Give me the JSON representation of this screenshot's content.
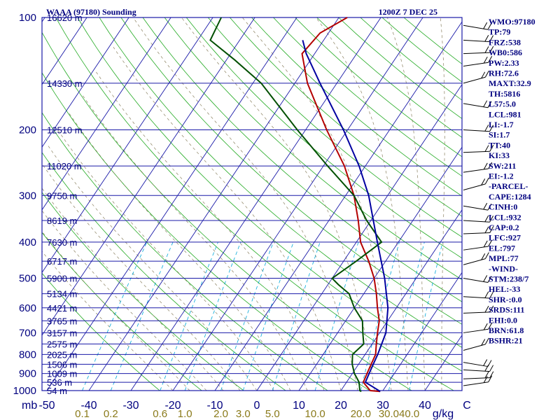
{
  "chart_data": {
    "type": "line",
    "title": "WAAA (97180) Sounding",
    "valid_time": "1200Z  7 DEC 25",
    "pressure_label": "mb",
    "pressure_ticks": [
      100,
      200,
      300,
      400,
      500,
      600,
      700,
      800,
      900,
      1000
    ],
    "xlabel_units": "C",
    "temperature_ticks": [
      "-50",
      "-40",
      "-30",
      "-20",
      "-10",
      "0",
      "10",
      "20",
      "30",
      "40",
      "C"
    ],
    "temperature_tick_values": [
      -50,
      -40,
      -30,
      -20,
      -10,
      0,
      10,
      20,
      30,
      40,
      50
    ],
    "mixing_ratio_label": "g/kg",
    "mixing_ratio_ticks": [
      "0.1",
      "0.2",
      "0.6",
      "1.0",
      "2.0",
      "3.0",
      "5.0",
      "10.0",
      "20.0",
      "30.0",
      "40.0"
    ],
    "mixing_ratio_values": [
      0.1,
      0.2,
      0.6,
      1.0,
      2.0,
      3.0,
      5.0,
      10.0,
      20.0,
      30.0,
      40.0
    ],
    "heights": [
      {
        "p": 100,
        "label": "16620 m"
      },
      {
        "p": 150,
        "label": "14330 m"
      },
      {
        "p": 200,
        "label": "12510 m"
      },
      {
        "p": 250,
        "label": "11020 m"
      },
      {
        "p": 300,
        "label": "9750 m"
      },
      {
        "p": 350,
        "label": "8619 m"
      },
      {
        "p": 400,
        "label": "7630 m"
      },
      {
        "p": 450,
        "label": "6717 m"
      },
      {
        "p": 500,
        "label": "5900 m"
      },
      {
        "p": 550,
        "label": "5134 m"
      },
      {
        "p": 600,
        "label": "4421 m"
      },
      {
        "p": 650,
        "label": "3765 m"
      },
      {
        "p": 700,
        "label": "3157 m"
      },
      {
        "p": 750,
        "label": "2575 m"
      },
      {
        "p": 800,
        "label": "2025 m"
      },
      {
        "p": 850,
        "label": "1506 m"
      },
      {
        "p": 900,
        "label": "1009 m"
      },
      {
        "p": 950,
        "label": "536 m"
      },
      {
        "p": 1000,
        "label": "54 m"
      }
    ],
    "axis_ranges": {
      "pressure_mb": [
        100,
        1000
      ],
      "temperature_c": [
        -50,
        50
      ]
    },
    "series": [
      {
        "name": "Temperature",
        "color": "#b40000",
        "points": [
          [
            1005,
            29.5
          ],
          [
            1000,
            27
          ],
          [
            950,
            24
          ],
          [
            900,
            23.5
          ],
          [
            850,
            23
          ],
          [
            800,
            22.5
          ],
          [
            750,
            21
          ],
          [
            700,
            19.5
          ],
          [
            650,
            18
          ],
          [
            600,
            15.5
          ],
          [
            550,
            13
          ],
          [
            500,
            10
          ],
          [
            450,
            6
          ],
          [
            400,
            1
          ],
          [
            350,
            -3
          ],
          [
            300,
            -8
          ],
          [
            250,
            -15
          ],
          [
            200,
            -25
          ],
          [
            150,
            -37
          ],
          [
            125,
            -43
          ],
          [
            110,
            -42
          ],
          [
            100,
            -38
          ]
        ]
      },
      {
        "name": "Dewpoint",
        "color": "#005000",
        "points": [
          [
            1005,
            25
          ],
          [
            1000,
            24.5
          ],
          [
            950,
            23
          ],
          [
            900,
            20.5
          ],
          [
            850,
            18.5
          ],
          [
            800,
            17
          ],
          [
            750,
            18
          ],
          [
            700,
            16
          ],
          [
            650,
            14
          ],
          [
            600,
            10
          ],
          [
            550,
            6.5
          ],
          [
            520,
            2.5
          ],
          [
            500,
            0
          ],
          [
            450,
            3
          ],
          [
            400,
            6
          ],
          [
            350,
            -1
          ],
          [
            300,
            -8
          ],
          [
            250,
            -19
          ],
          [
            200,
            -32
          ],
          [
            150,
            -48
          ],
          [
            130,
            -58
          ],
          [
            115,
            -67
          ],
          [
            100,
            -68
          ]
        ]
      },
      {
        "name": "Parcel path",
        "color": "#0000a0",
        "points": [
          [
            1005,
            29.5
          ],
          [
            950,
            24.5
          ],
          [
            900,
            24
          ],
          [
            850,
            23.5
          ],
          [
            800,
            23
          ],
          [
            700,
            21.5
          ],
          [
            600,
            18
          ],
          [
            500,
            12.5
          ],
          [
            400,
            5
          ],
          [
            300,
            -4.5
          ],
          [
            250,
            -11.5
          ],
          [
            200,
            -21
          ],
          [
            150,
            -34
          ],
          [
            125,
            -42
          ],
          [
            115,
            -45
          ]
        ]
      }
    ],
    "indices": [
      "WMO:97180",
      "TP:79",
      "FRZ:538",
      "WB0:586",
      "PW:2.33",
      "RH:72.6",
      "MAXT:32.9",
      "TH:5816",
      "L57:5.0",
      "LCL:981",
      "LI:-1.7",
      "SI:1.7",
      "TT:40",
      "KI:33",
      "SW:211",
      "EI:-1.2",
      "-PARCEL-",
      "CAPE:1284",
      "CINH:0",
      "LCL:932",
      "CAP:0.2",
      "LFC:927",
      "EL:797",
      "MPL:77",
      "-WIND-",
      "STM:238/7",
      "HEL:-33",
      "SHR-:0.0",
      "SRDS:111",
      "EHI:0.0",
      "BRN:61.8",
      "BSHR:21"
    ],
    "grid": true,
    "legend": "none"
  }
}
